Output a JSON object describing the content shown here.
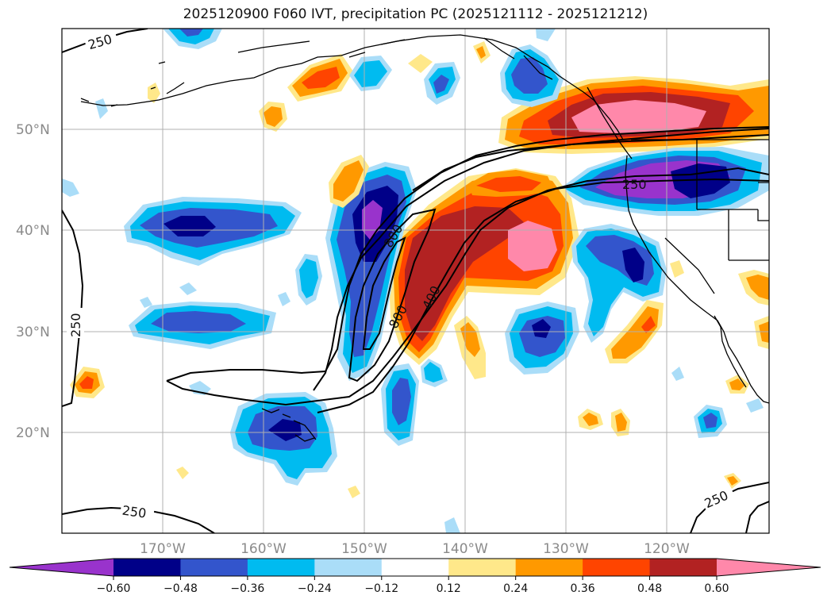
{
  "title": "2025120900 F060 IVT, precipitation PC (2025121112 - 2025121212)",
  "lat_labels": [
    "50°N",
    "40°N",
    "30°N",
    "20°N"
  ],
  "lon_labels": [
    "170°W",
    "160°W",
    "150°W",
    "140°W",
    "130°W",
    "120°W"
  ],
  "colorbar": {
    "ticks": [
      "−0.60",
      "−0.48",
      "−0.36",
      "−0.24",
      "−0.12",
      "0.12",
      "0.24",
      "0.36",
      "0.48",
      "0.60"
    ],
    "colors": [
      "#9933cc",
      "#000088",
      "#3355cc",
      "#00bbf0",
      "#aaddf8",
      "#ffffff",
      "#ffe88a",
      "#ff9900",
      "#ff4400",
      "#b22222",
      "#ff88aa"
    ]
  },
  "contour_labels": {
    "c250_nw": "250",
    "c250_w": "250",
    "c250_sw": "250",
    "c250_se": "250",
    "c250_ne": "250",
    "c800_a": "800",
    "c800_b": "800",
    "c400": "400"
  }
}
